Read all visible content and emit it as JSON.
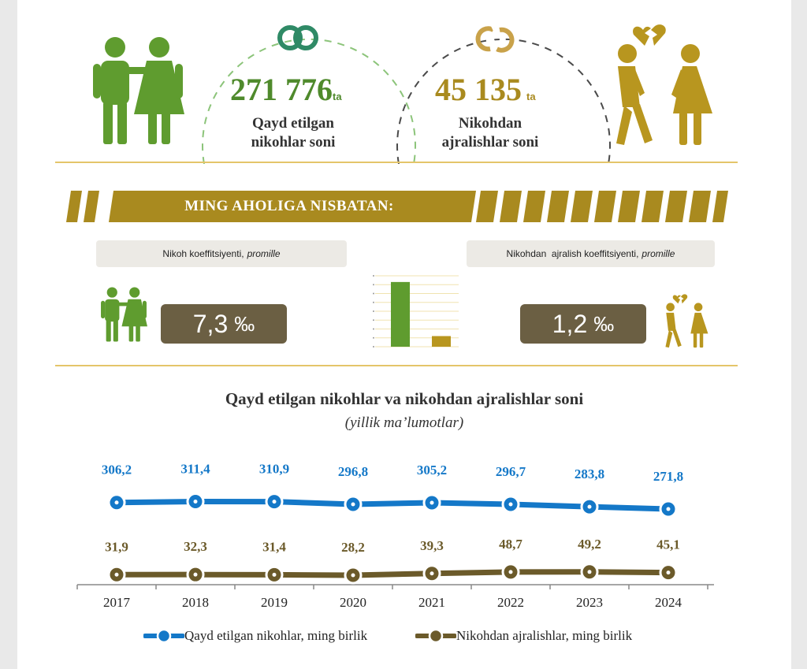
{
  "header": {
    "marriages": {
      "value": "271 776",
      "unit": "ta",
      "label_line1": "Qayd etilgan",
      "label_line2": "nikohlar soni",
      "icon": "rings-icon"
    },
    "divorces": {
      "value": "45 135",
      "unit": "ta",
      "label_line1": "Nikohdan",
      "label_line2": "ajralishlar soni",
      "icon": "broken-rings-icon"
    }
  },
  "banner": {
    "text": "MING AHOLIGA NISBATAN:"
  },
  "coefficients": {
    "marriage": {
      "label": "Nikoh koeffitsiyenti,",
      "label_unit": "promille",
      "value": "7,3",
      "unit": "‰"
    },
    "divorce": {
      "label": "Nikohdan  ajralish koeffitsiyenti,",
      "label_unit": "promille",
      "value": "1,2",
      "unit": "‰"
    }
  },
  "colors": {
    "green": "#5f9c2f",
    "gold": "#b8961f",
    "blue": "#1478c8",
    "brown": "#6b5a2a",
    "coef_box": "#6b5f43",
    "accent_line": "#e4c56a"
  },
  "chart_data": [
    {
      "type": "bar",
      "categories": [
        "",
        ""
      ],
      "values": [
        7.3,
        1.2
      ],
      "colors": [
        "#5f9c2f",
        "#b8961f"
      ],
      "grid": true
    },
    {
      "type": "line",
      "title": "Qayd etilgan nikohlar va nikohdan ajralishlar soni",
      "subtitle": "(yillik ma’lumotlar)",
      "categories": [
        "2017",
        "2018",
        "2019",
        "2020",
        "2021",
        "2022",
        "2023",
        "2024"
      ],
      "series": [
        {
          "name": "Qayd etilgan nikohlar, ming birlik",
          "values": [
            306.2,
            311.4,
            310.9,
            296.8,
            305.2,
            296.7,
            283.8,
            271.8
          ],
          "labels": [
            "306,2",
            "311,4",
            "310,9",
            "296,8",
            "305,2",
            "296,7",
            "283,8",
            "271,8"
          ],
          "color": "#1478c8"
        },
        {
          "name": "Nikohdan ajralishlar, ming birlik",
          "values": [
            31.9,
            32.3,
            31.4,
            28.2,
            39.3,
            48.7,
            49.2,
            45.1
          ],
          "labels": [
            "31,9",
            "32,3",
            "31,4",
            "28,2",
            "39,3",
            "48,7",
            "49,2",
            "45,1"
          ],
          "color": "#6b5a2a"
        }
      ],
      "grid": false,
      "legend": "bottom"
    }
  ]
}
